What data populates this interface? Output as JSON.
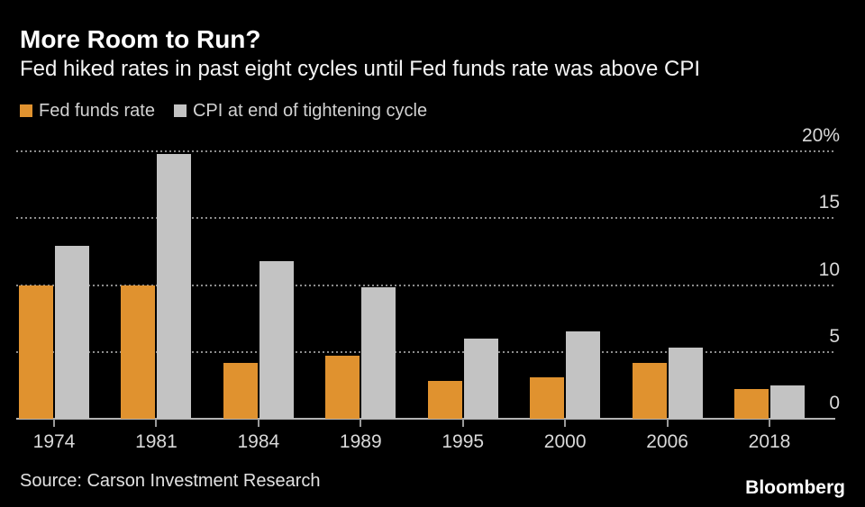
{
  "header": {
    "title": "More Room to Run?",
    "subtitle": "Fed hiked rates in past eight cycles until Fed funds rate was above CPI"
  },
  "legend": {
    "items": [
      {
        "label": "Fed funds rate",
        "color": "#E0922F"
      },
      {
        "label": "CPI at end of tightening cycle",
        "color": "#C3C3C3"
      }
    ]
  },
  "chart_data": {
    "type": "bar",
    "title": "More Room to Run?",
    "subtitle": "Fed hiked rates in past eight cycles until Fed funds rate was above CPI",
    "categories": [
      "1974",
      "1981",
      "1984",
      "1989",
      "1995",
      "2000",
      "2006",
      "2018"
    ],
    "series": [
      {
        "name": "Fed funds rate",
        "color": "#E0922F",
        "values": [
          10.0,
          10.0,
          4.2,
          4.7,
          2.8,
          3.1,
          4.2,
          2.2
        ]
      },
      {
        "name": "CPI at end of tightening cycle",
        "color": "#C3C3C3",
        "values": [
          12.9,
          19.8,
          11.8,
          9.8,
          6.0,
          6.5,
          5.3,
          2.5
        ]
      }
    ],
    "ylim": [
      0,
      20
    ],
    "yticks": [
      0,
      5,
      10,
      15,
      20
    ],
    "ytick_labels": [
      "0",
      "5",
      "10",
      "15",
      "20%"
    ],
    "unit_suffix": "%",
    "grid": "horizontal-dotted",
    "legend_position": "top-left",
    "y_axis_side": "right",
    "background_color": "#000000",
    "gridline_color": "#8c8c8c",
    "axis_line_color": "#b3b3b3",
    "text_color": "#d9d9d9"
  },
  "footer": {
    "source": "Source: Carson Investment Research",
    "brand": "Bloomberg"
  }
}
